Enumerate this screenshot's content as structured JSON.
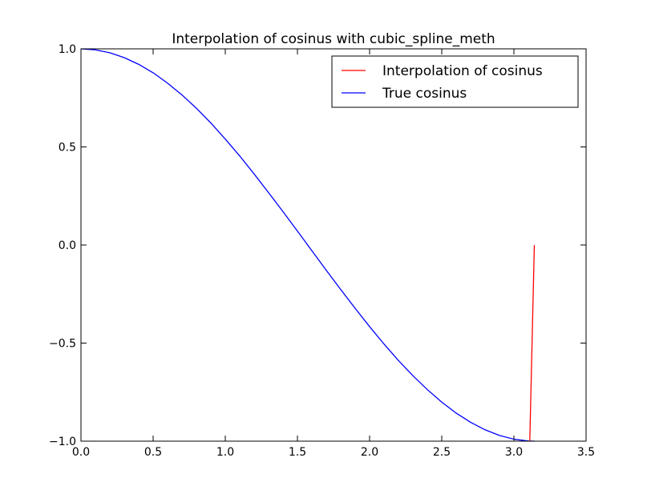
{
  "chart_data": {
    "type": "line",
    "title": "Interpolation of cosinus with cubic_spline_meth",
    "xlabel": "",
    "ylabel": "",
    "xlim": [
      0.0,
      3.5
    ],
    "ylim": [
      -1.0,
      1.0
    ],
    "x_ticks": [
      "0.0",
      "0.5",
      "1.0",
      "1.5",
      "2.0",
      "2.5",
      "3.0",
      "3.5"
    ],
    "y_ticks": [
      "−1.0",
      "−0.5",
      "0.0",
      "0.5",
      "1.0"
    ],
    "x_tick_values": [
      0.0,
      0.5,
      1.0,
      1.5,
      2.0,
      2.5,
      3.0,
      3.5
    ],
    "y_tick_values": [
      -1.0,
      -0.5,
      0.0,
      0.5,
      1.0
    ],
    "grid": false,
    "legend_position": "top-right",
    "series": [
      {
        "name": "Interpolation of cosinus",
        "color": "#ff0000",
        "x": [
          3.11,
          3.1416
        ],
        "y": [
          -1.0,
          0.0
        ]
      },
      {
        "name": "True cosinus",
        "color": "#0000ff",
        "x": [
          0.0,
          0.1,
          0.2,
          0.3,
          0.4,
          0.5,
          0.6,
          0.7,
          0.8,
          0.9,
          1.0,
          1.1,
          1.2,
          1.3,
          1.4,
          1.5,
          1.6,
          1.7,
          1.8,
          1.9,
          2.0,
          2.1,
          2.2,
          2.3,
          2.4,
          2.5,
          2.6,
          2.7,
          2.8,
          2.9,
          3.0,
          3.1,
          3.1416
        ],
        "y": [
          1.0,
          0.995,
          0.98,
          0.955,
          0.921,
          0.878,
          0.825,
          0.765,
          0.697,
          0.622,
          0.54,
          0.454,
          0.362,
          0.267,
          0.17,
          0.071,
          -0.029,
          -0.129,
          -0.227,
          -0.323,
          -0.416,
          -0.505,
          -0.589,
          -0.666,
          -0.737,
          -0.801,
          -0.857,
          -0.904,
          -0.942,
          -0.971,
          -0.99,
          -0.999,
          -1.0
        ]
      }
    ]
  }
}
